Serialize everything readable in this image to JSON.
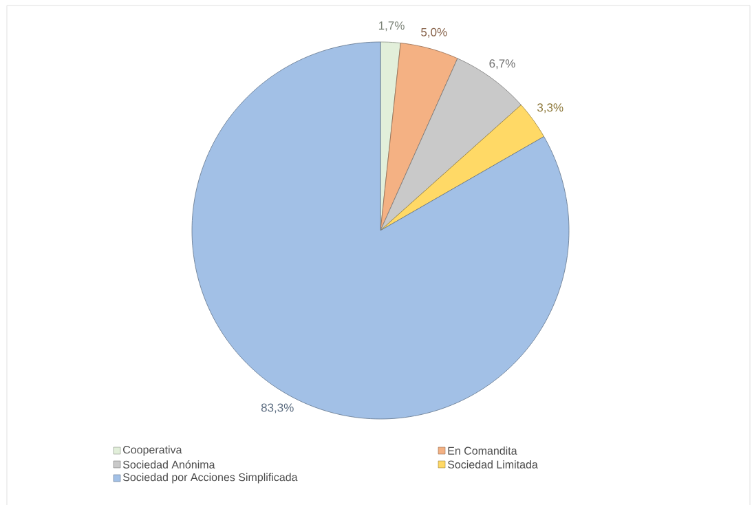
{
  "chart_data": {
    "type": "pie",
    "categories": [
      "Cooperativa",
      "En Comandita",
      "Sociedad Anónima",
      "Sociedad Limitada",
      "Sociedad por Acciones Simplificada"
    ],
    "values": [
      1.7,
      5.0,
      6.7,
      3.3,
      83.3
    ],
    "colors": [
      "#e2efda",
      "#f4b183",
      "#c9c9c9",
      "#ffd966",
      "#a2c0e6"
    ],
    "value_labels": [
      "1,7%",
      "5,0%",
      "6,7%",
      "3,3%",
      "83,3%"
    ],
    "legend": "bottom"
  }
}
